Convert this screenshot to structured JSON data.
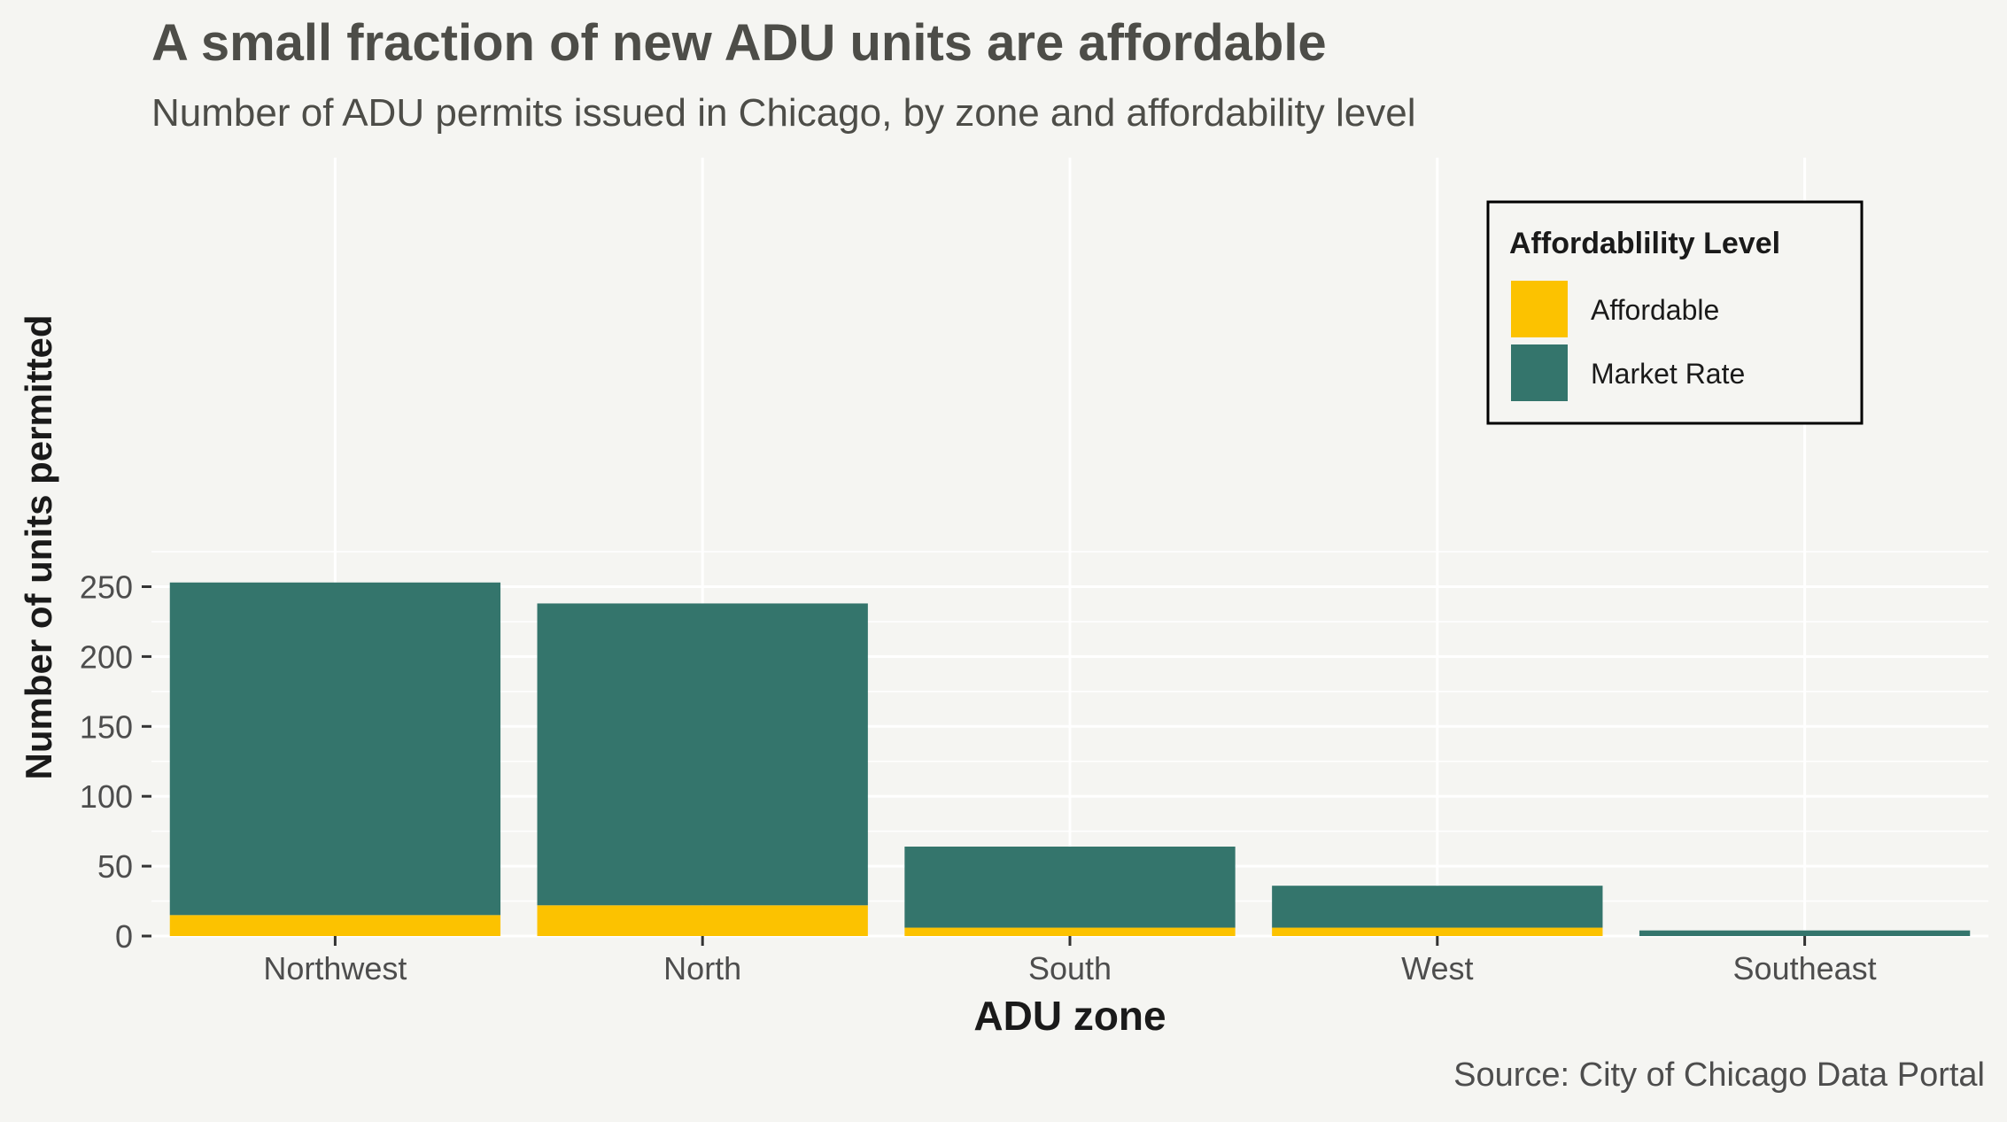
{
  "chart_data": {
    "type": "bar",
    "stacked": true,
    "title": "A small fraction of new ADU units are affordable",
    "subtitle": "Number of ADU permits issued in Chicago, by zone and affordability level",
    "xlabel": "ADU zone",
    "ylabel": "Number of units permitted",
    "caption": "Source: City of Chicago Data Portal",
    "categories": [
      "Northwest",
      "North",
      "South",
      "West",
      "Southeast"
    ],
    "series": [
      {
        "name": "Affordable",
        "color": "#fcc200",
        "values": [
          15,
          22,
          6,
          6,
          0
        ]
      },
      {
        "name": "Market Rate",
        "color": "#34756c",
        "values": [
          238,
          216,
          58,
          30,
          4
        ]
      }
    ],
    "ylim": [
      0,
      277
    ],
    "yticks": [
      0,
      50,
      100,
      150,
      200,
      250
    ],
    "ytick_labels": [
      "0",
      "50",
      "100",
      "150",
      "200",
      "250"
    ],
    "grid": true,
    "legend": {
      "title": "Affordablility Level",
      "placement": "top-right",
      "items": [
        "Affordable",
        "Market Rate"
      ]
    },
    "colors": {
      "background": "#f5f5f2",
      "grid": "#ffffff",
      "title": "#4d4d48",
      "axis_title": "#1a1a1a",
      "tick_label": "#4d4d4d"
    }
  }
}
